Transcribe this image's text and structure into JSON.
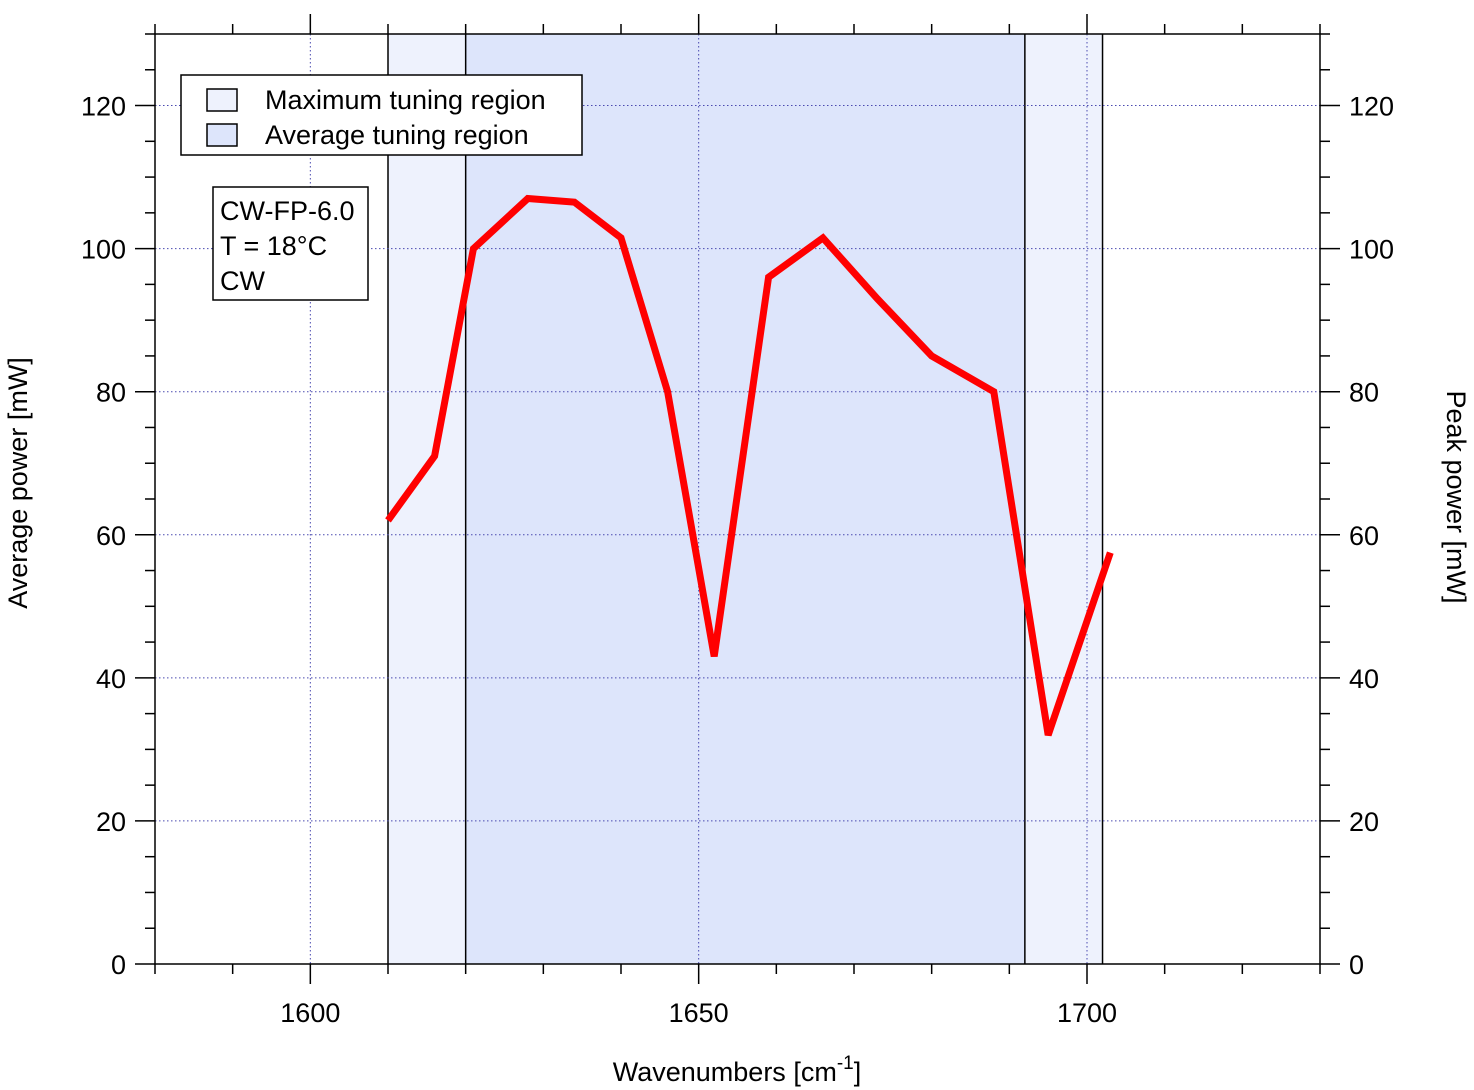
{
  "chart_data": {
    "type": "line",
    "x_label": "Wavenumbers [cm",
    "x_label_superscript": "-1",
    "x_label_suffix": "]",
    "y_label_left": "Average power [mW]",
    "y_label_right": "Peak power [mW]",
    "xlim": [
      1580,
      1730
    ],
    "ylim": [
      0,
      130
    ],
    "x_ticks": [
      1600,
      1650,
      1700
    ],
    "x_tick_labels": [
      "1600",
      "1650",
      "1700"
    ],
    "y_ticks": [
      0,
      20,
      40,
      60,
      80,
      100,
      120
    ],
    "y_tick_labels": [
      "0",
      "20",
      "40",
      "60",
      "80",
      "100",
      "120"
    ],
    "grid": true,
    "legend_position": "top-left",
    "legend": [
      {
        "label": "Maximum tuning region",
        "color": "#eef2fd"
      },
      {
        "label": "Average tuning region",
        "color": "#dde5fb"
      }
    ],
    "regions": [
      {
        "name": "Maximum tuning region",
        "x": [
          1610,
          1702
        ]
      },
      {
        "name": "Average tuning region",
        "x": [
          1620,
          1692
        ]
      }
    ],
    "annotation": [
      "CW-FP-6.0",
      "T = 18°C",
      "CW"
    ],
    "series": [
      {
        "color": "#ff0000",
        "x": [
          1610,
          1616,
          1621,
          1628,
          1634,
          1640,
          1646,
          1652,
          1659,
          1666,
          1673,
          1680,
          1688,
          1695,
          1703
        ],
        "y": [
          62,
          71,
          100,
          107,
          106.5,
          101.5,
          80,
          43,
          96,
          101.5,
          93,
          85,
          80,
          32,
          57.5
        ]
      }
    ]
  }
}
